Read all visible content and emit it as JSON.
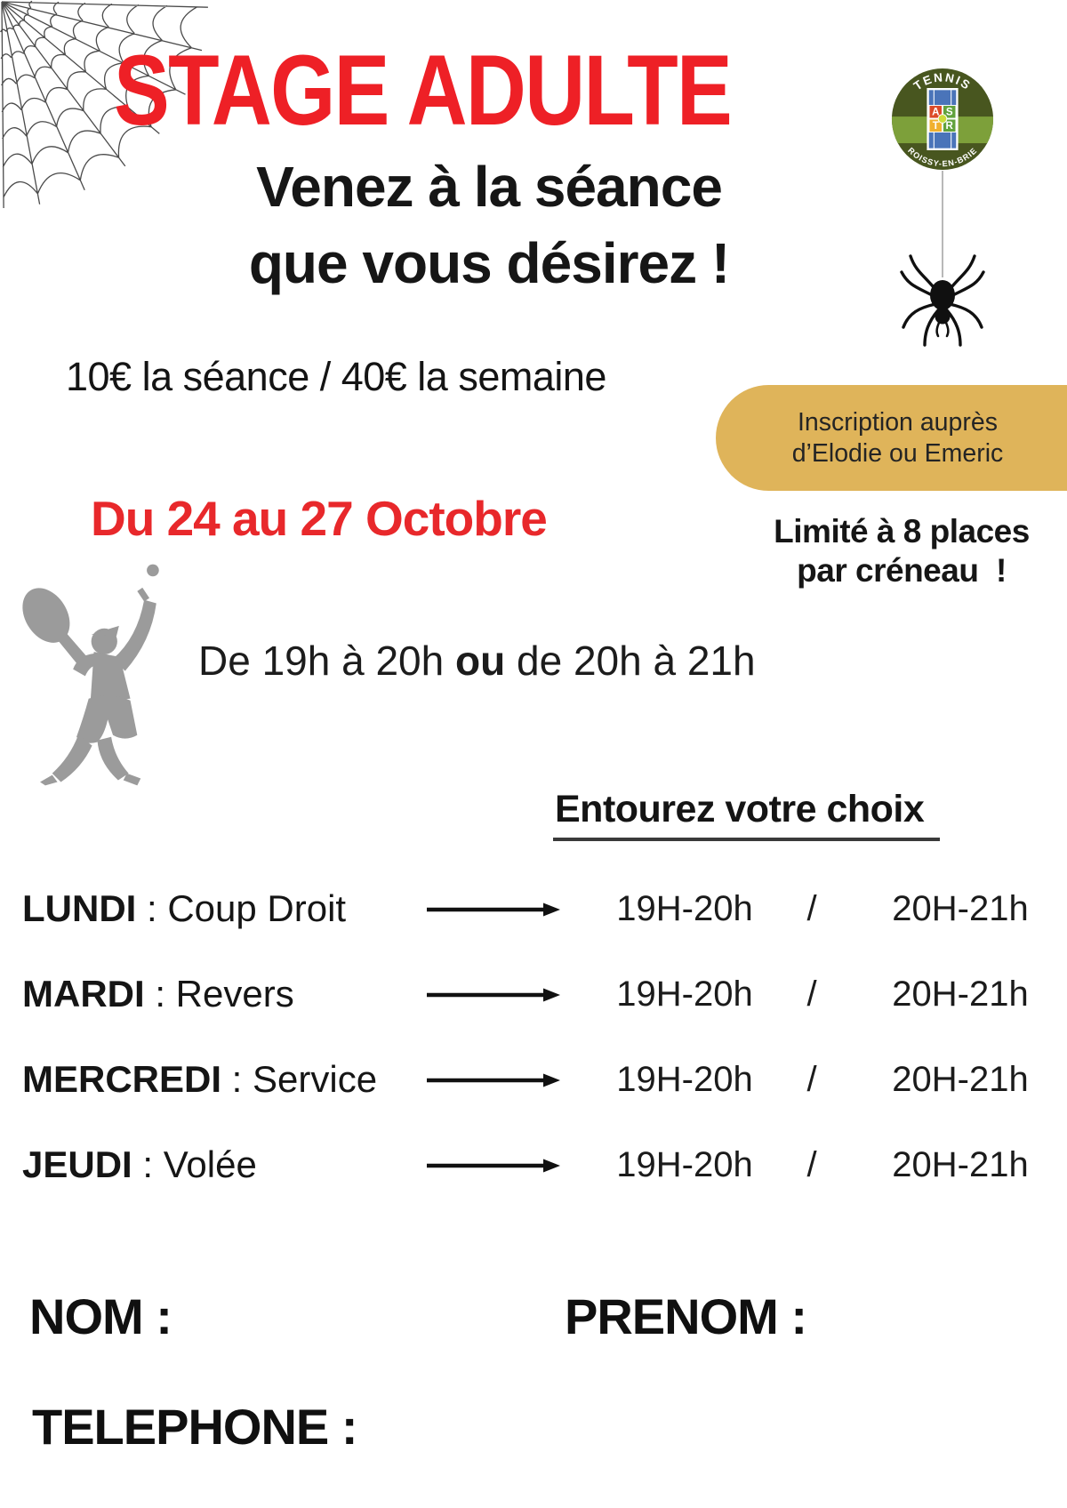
{
  "poster": {
    "title": "STAGE ADULTE",
    "subtitle": {
      "line1": "Venez à la séance",
      "line2": "que vous désirez !"
    },
    "pricing": "10€ la séance / 40€ la semaine",
    "inscription": {
      "line1": "Inscription auprès",
      "line2": "d’Elodie ou Emeric"
    },
    "dates": "Du 24 au 27 Octobre",
    "limit": {
      "line1": "Limité à 8 places",
      "line2": "par créneau  !"
    },
    "times": {
      "part1": "De 19h à 20h ",
      "bold": "ou",
      "part2": " de 20h à 21h"
    },
    "choice_heading": "Entourez votre choix",
    "schedule": [
      {
        "day": "LUNDI",
        "colon": " : ",
        "activity": "Coup Droit",
        "time1": "19H-20h",
        "separator": "/",
        "time2": "20H-21h"
      },
      {
        "day": "MARDI",
        "colon": " : ",
        "activity": "Revers",
        "time1": "19H-20h",
        "separator": "/",
        "time2": "20H-21h"
      },
      {
        "day": "MERCREDI",
        "colon": " : ",
        "activity": "Service",
        "time1": "19H-20h",
        "separator": "/",
        "time2": "20H-21h"
      },
      {
        "day": "JEUDI",
        "colon": " : ",
        "activity": "Volée",
        "time1": "19H-20h",
        "separator": "/",
        "time2": "20H-21h"
      }
    ],
    "form": {
      "name_label": "NOM :",
      "firstname_label": "PRENOM :",
      "phone_label": "TELEPHONE :"
    },
    "logo": {
      "arc_top": "TENNIS",
      "arc_bottom": "ROISSY-EN-BRIE",
      "tiles": [
        {
          "letter": "A",
          "color": "#DC4A28"
        },
        {
          "letter": "S",
          "color": "#61A23D"
        },
        {
          "letter": "T",
          "color": "#F0B02F"
        },
        {
          "letter": "R",
          "color": "#61A23D"
        }
      ]
    },
    "icons": {
      "web": "spider-web-icon",
      "spider": "spider-icon",
      "player": "tennis-player-serving-icon",
      "arrow": "right-arrow-icon"
    },
    "colors": {
      "title_red": "#EE2026",
      "dates_red": "#E8282B",
      "gold": "#DFB45A",
      "silhouette_gray": "#9B9B9B",
      "logo_dark_green": "#48561F",
      "logo_light_green": "#7DA03A",
      "court_blue": "#4A74B9"
    }
  }
}
